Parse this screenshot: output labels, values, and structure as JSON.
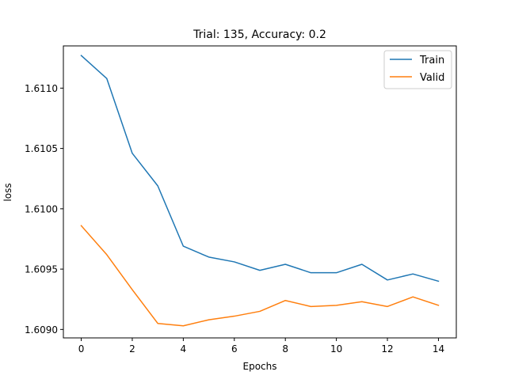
{
  "chart_data": {
    "type": "line",
    "title": "Trial: 135, Accuracy: 0.2",
    "xlabel": "Epochs",
    "ylabel": "loss",
    "xlim": [
      -0.7,
      14.7
    ],
    "ylim": [
      1.60893,
      1.61135
    ],
    "xticks": [
      0,
      2,
      4,
      6,
      8,
      10,
      12,
      14
    ],
    "xtick_labels": [
      "0",
      "2",
      "4",
      "6",
      "8",
      "10",
      "12",
      "14"
    ],
    "yticks": [
      1.609,
      1.6095,
      1.61,
      1.6105,
      1.611
    ],
    "ytick_labels": [
      "1.6090",
      "1.6095",
      "1.6100",
      "1.6105",
      "1.6110"
    ],
    "grid": false,
    "legend_position": "top-right",
    "x": [
      0,
      1,
      2,
      3,
      4,
      5,
      6,
      7,
      8,
      9,
      10,
      11,
      12,
      13,
      14
    ],
    "series": [
      {
        "name": "Train",
        "color": "#1f77b4",
        "values": [
          1.61127,
          1.61108,
          1.61046,
          1.61019,
          1.60969,
          1.6096,
          1.60956,
          1.60949,
          1.60954,
          1.60947,
          1.60947,
          1.60954,
          1.60941,
          1.60946,
          1.6094
        ]
      },
      {
        "name": "Valid",
        "color": "#ff7f0e",
        "values": [
          1.60986,
          1.60962,
          1.60933,
          1.60905,
          1.60903,
          1.60908,
          1.60911,
          1.60915,
          1.60924,
          1.60919,
          1.6092,
          1.60923,
          1.60919,
          1.60927,
          1.6092
        ]
      }
    ]
  }
}
